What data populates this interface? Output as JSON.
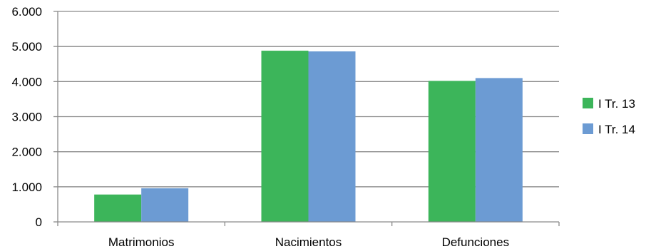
{
  "chart_data": {
    "type": "bar",
    "categories": [
      "Matrimonios",
      "Nacimientos",
      "Defunciones"
    ],
    "series": [
      {
        "name": "I Tr. 13",
        "color": "#3cb55a",
        "values": [
          780,
          4880,
          4020
        ]
      },
      {
        "name": "I Tr. 14",
        "color": "#6c9bd3",
        "values": [
          960,
          4860,
          4100
        ]
      }
    ],
    "yticks": [
      "0",
      "1.000",
      "2.000",
      "3.000",
      "4.000",
      "5.000",
      "6.000"
    ],
    "ylim": [
      0,
      6000
    ],
    "grid": true,
    "legend_position": "right"
  }
}
